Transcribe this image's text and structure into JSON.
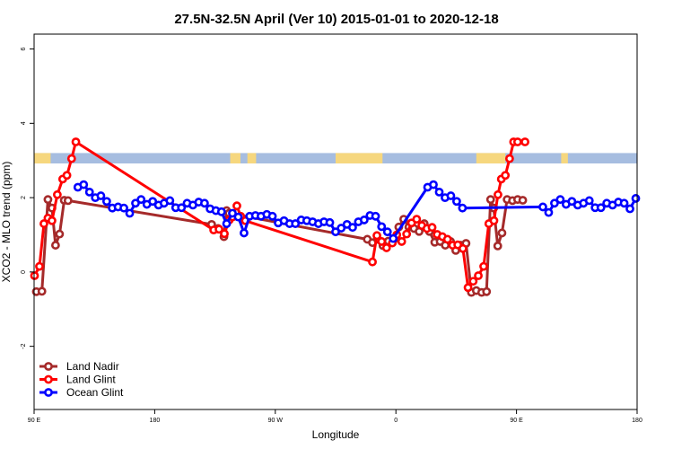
{
  "chart_data": {
    "type": "line",
    "title": "27.5N-32.5N April (Ver 10)   2015-01-01 to 2020-12-18",
    "xlabel": "Longitude",
    "ylabel": "XCO2 - MLO trend (ppm)",
    "xlim": [
      -90,
      180
    ],
    "ylim": [
      -3.7,
      6.4
    ],
    "xticks": [
      {
        "value": -90,
        "label": "90 E"
      },
      {
        "value": -36,
        "label": "180"
      },
      {
        "value": 18,
        "label": "90 W"
      },
      {
        "value": 72,
        "label": "0"
      },
      {
        "value": 126,
        "label": "90 E"
      },
      {
        "value": 180,
        "label": "180"
      }
    ],
    "yticks": [
      -2,
      0,
      2,
      4,
      6
    ],
    "legend_position": "bottom-left",
    "land_sea_strip": {
      "y_range": [
        2.92,
        3.2
      ],
      "ocean_color": "#a6bde0",
      "land_color": "#f6d77e",
      "land_segments": [
        [
          -90,
          -82.6
        ],
        [
          -2.2,
          2.4
        ],
        [
          5.5,
          9.4
        ],
        [
          45,
          66
        ],
        [
          108,
          121
        ],
        [
          146,
          149
        ]
      ]
    },
    "series": [
      {
        "name": "Land Nadir",
        "color": "#a52a2a",
        "x": [
          -89,
          -86.5,
          -83.8,
          -82,
          -80.4,
          -78.6,
          -76.5,
          -74.8,
          -10.5,
          -7.6,
          -5,
          -3.8,
          -2.7,
          59.2,
          61.5,
          63.8,
          66.2,
          68.6,
          71,
          73.3,
          75.5,
          77.8,
          80.1,
          82.4,
          84.7,
          87,
          89.4,
          91.8,
          94.1,
          96.5,
          98.8,
          101,
          103.4,
          105.8,
          108,
          110.4,
          112.6,
          114.4,
          115.8,
          117.6,
          119.5,
          121.8,
          124.2,
          126.5,
          128.8
        ],
        "y": [
          -0.53,
          -0.52,
          1.95,
          1.72,
          0.72,
          1.02,
          1.93,
          1.92,
          1.28,
          1.17,
          0.95,
          1.65,
          1.58,
          0.88,
          0.79,
          0.88,
          0.71,
          0.83,
          0.87,
          1.21,
          1.42,
          1.21,
          1.17,
          1.09,
          1.3,
          1.09,
          0.8,
          0.82,
          0.72,
          0.82,
          0.58,
          0.72,
          0.77,
          -0.55,
          -0.5,
          -0.55,
          -0.53,
          1.95,
          1.72,
          0.7,
          1.05,
          1.95,
          1.92,
          1.95,
          1.93
        ]
      },
      {
        "name": "Land Glint",
        "color": "#ff0000",
        "x": [
          -89.8,
          -87.6,
          -85.6,
          -83.8,
          -82,
          -79.6,
          -77.2,
          -75.3,
          -73.2,
          -71.3,
          -9.6,
          -7.2,
          -4.8,
          -2.6,
          -1.2,
          0.8,
          2.5,
          4.6,
          61.5,
          63.5,
          65.6,
          67.8,
          70.4,
          72.4,
          74.6,
          76.8,
          79,
          81.3,
          83.6,
          85.9,
          88.2,
          90.5,
          92.8,
          95.1,
          97.4,
          99.7,
          102,
          104.3,
          106.6,
          108.9,
          111.3,
          113.6,
          115.9,
          117.7,
          119.2,
          121,
          122.9,
          124.7,
          126.5,
          129.8
        ],
        "y": [
          -0.1,
          0.15,
          1.3,
          1.45,
          1.38,
          2.08,
          2.5,
          2.6,
          3.05,
          3.5,
          1.13,
          1.15,
          1.03,
          1.4,
          1.48,
          1.78,
          1.5,
          1.38,
          0.27,
          0.98,
          0.82,
          0.65,
          0.78,
          1.0,
          0.82,
          1.02,
          1.32,
          1.42,
          1.25,
          1.17,
          1.2,
          1.01,
          0.95,
          0.88,
          0.72,
          0.73,
          0.63,
          -0.42,
          -0.25,
          -0.1,
          0.15,
          1.3,
          1.38,
          2.08,
          2.5,
          2.6,
          3.05,
          3.5,
          3.5,
          3.5
        ]
      },
      {
        "name": "Ocean Glint",
        "color": "#0000ff",
        "x": [
          -70.4,
          -67.8,
          -65.2,
          -62.6,
          -60.1,
          -57.5,
          -55,
          -52.4,
          -49.8,
          -47.2,
          -44.6,
          -42.1,
          -39.5,
          -36.9,
          -34.3,
          -31.8,
          -29.2,
          -26.6,
          -24,
          -21.5,
          -18.9,
          -16.3,
          -13.7,
          -11.2,
          -8.6,
          -6.1,
          -3.8,
          -1.2,
          1.4,
          4,
          6.5,
          9.1,
          11.6,
          14.2,
          16.7,
          19.3,
          21.9,
          24.4,
          27,
          29.6,
          32.1,
          34.7,
          37.3,
          39.8,
          42.4,
          45,
          47.5,
          50.1,
          52.6,
          55.2,
          57.8,
          60.4,
          62.9,
          65.6,
          68.2,
          70.8,
          86.2,
          88.8,
          91.4,
          94,
          96.6,
          99.2,
          101.8,
          137.8,
          140.4,
          143,
          145.6,
          148.2,
          150.8,
          153.4,
          156,
          158.6,
          161.2,
          163.8,
          166.4,
          169,
          171.6,
          174.2,
          176.8,
          179.4
        ],
        "y": [
          2.28,
          2.35,
          2.15,
          2.0,
          2.05,
          1.9,
          1.72,
          1.75,
          1.72,
          1.58,
          1.85,
          1.95,
          1.82,
          1.9,
          1.8,
          1.85,
          1.92,
          1.73,
          1.73,
          1.85,
          1.8,
          1.88,
          1.85,
          1.7,
          1.65,
          1.62,
          1.3,
          1.58,
          1.48,
          1.05,
          1.5,
          1.52,
          1.5,
          1.55,
          1.5,
          1.32,
          1.38,
          1.3,
          1.3,
          1.4,
          1.38,
          1.35,
          1.3,
          1.35,
          1.33,
          1.08,
          1.18,
          1.28,
          1.2,
          1.35,
          1.4,
          1.52,
          1.5,
          1.22,
          1.08,
          0.9,
          2.28,
          2.35,
          2.15,
          2.0,
          2.05,
          1.9,
          1.72,
          1.75,
          1.6,
          1.85,
          1.95,
          1.82,
          1.9,
          1.8,
          1.85,
          1.92,
          1.73,
          1.73,
          1.85,
          1.8,
          1.88,
          1.85,
          1.7,
          1.98
        ]
      }
    ]
  }
}
